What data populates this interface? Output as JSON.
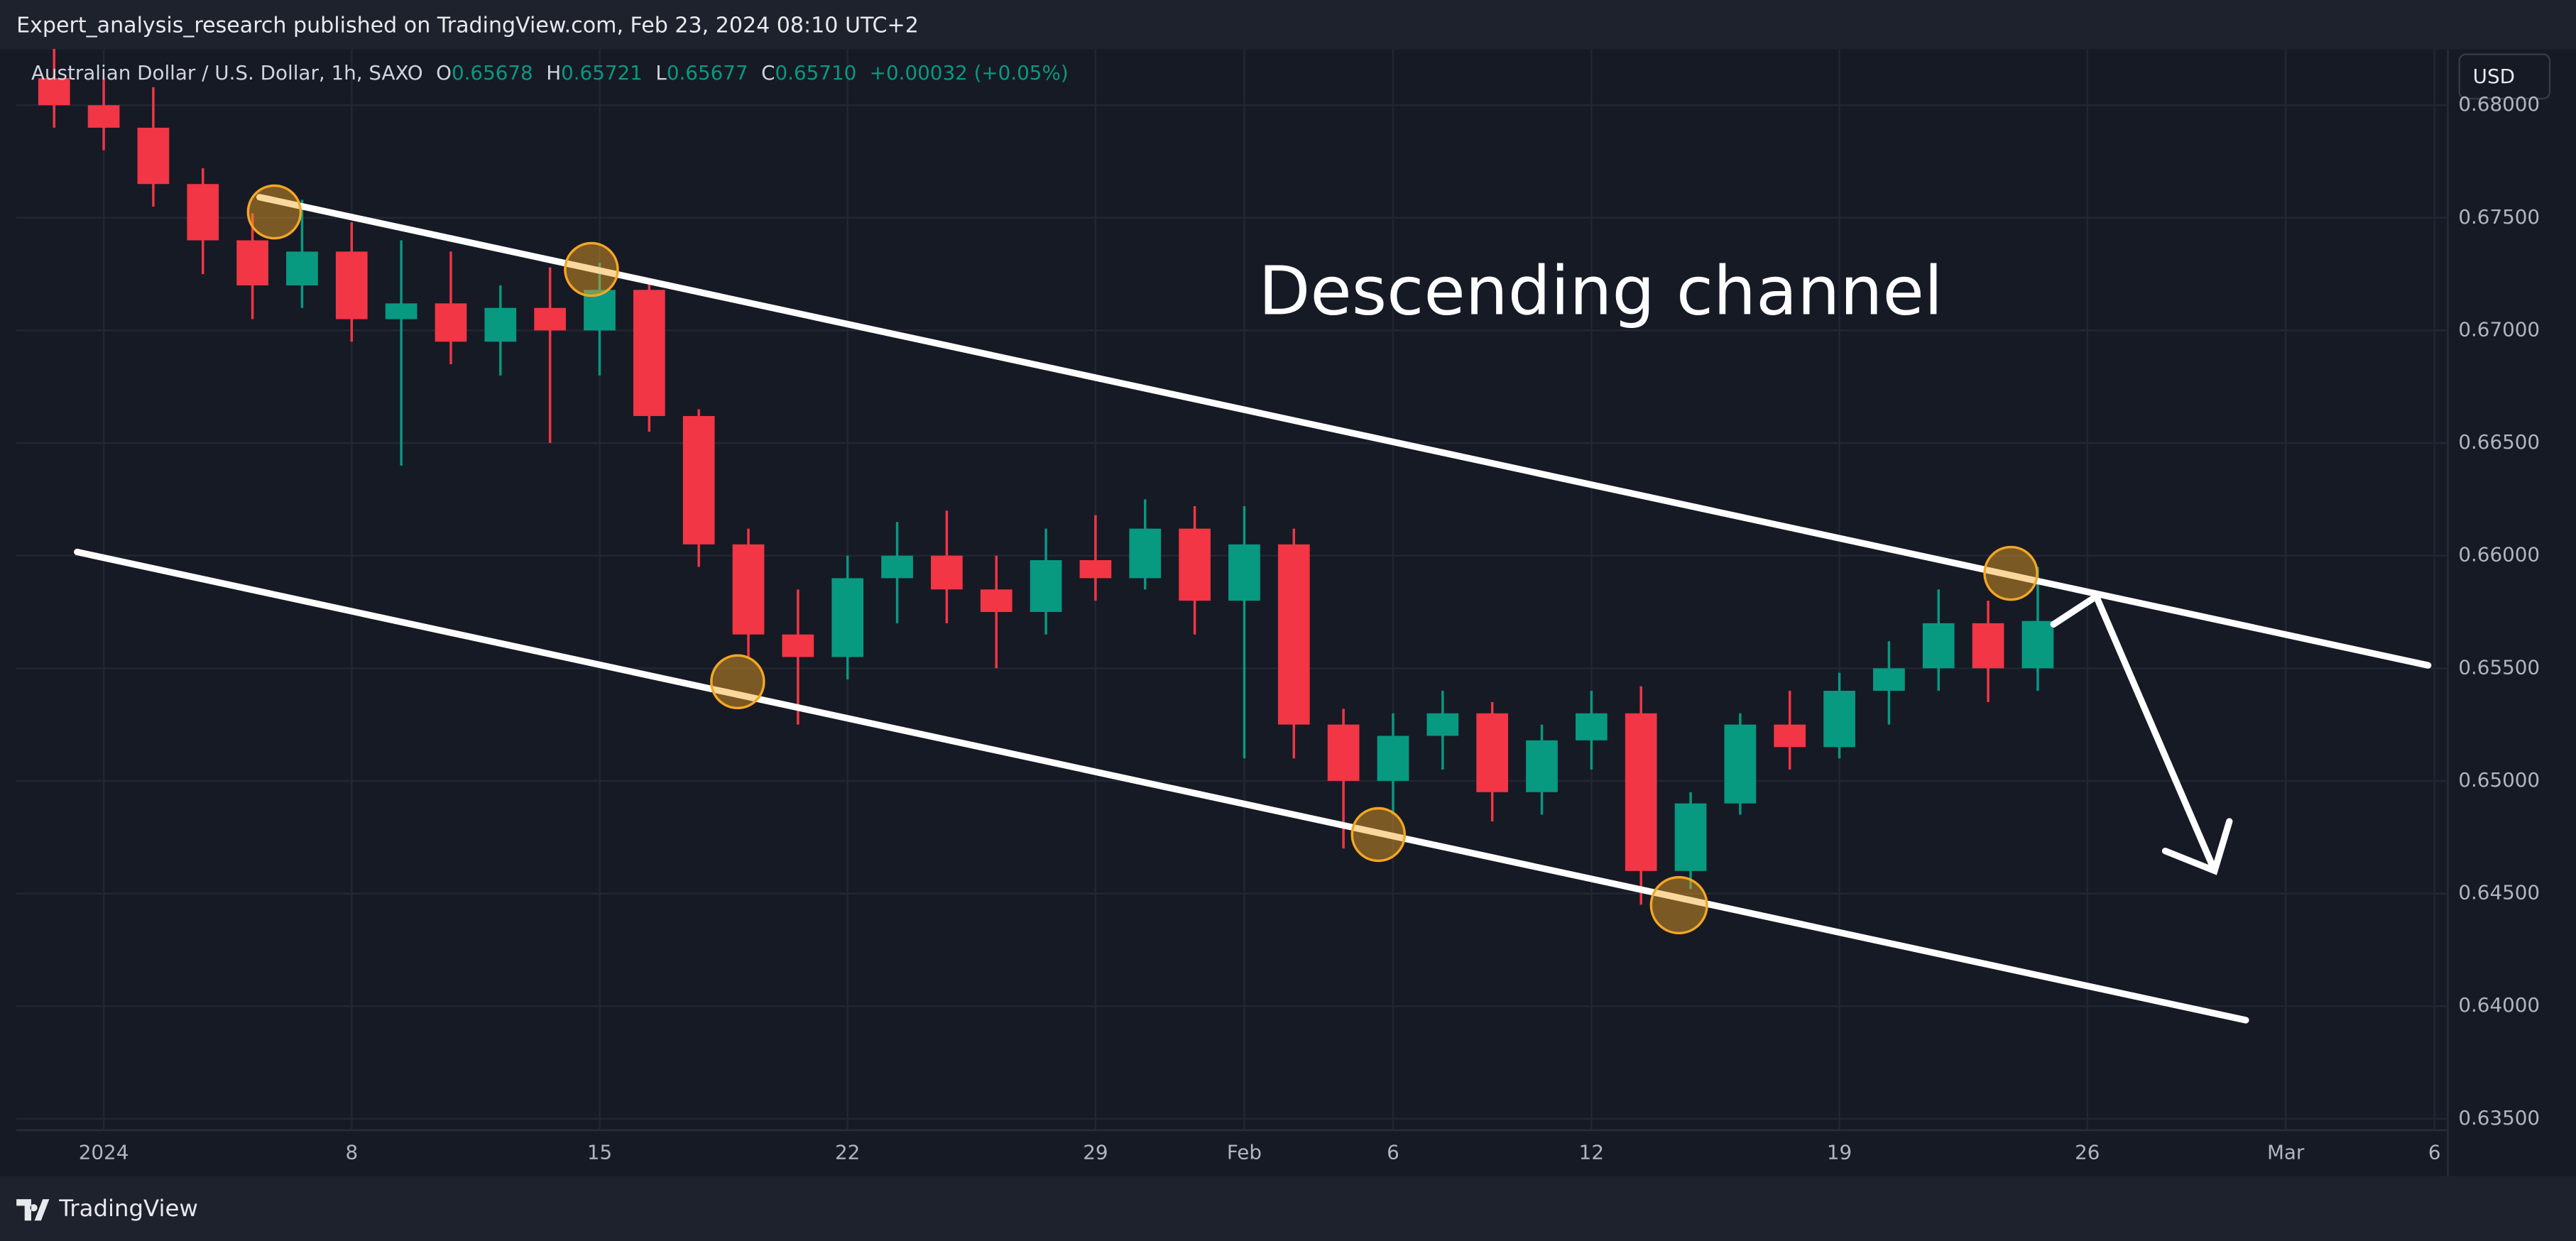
{
  "header": {
    "text": "Expert_analysis_research published on TradingView.com, Feb 23, 2024 08:10 UTC+2"
  },
  "footer": {
    "brand": "TradingView"
  },
  "currency_button": "USD",
  "chart_data": {
    "type": "candlestick",
    "title": "Australian Dollar / U.S. Dollar, 1h, SAXO",
    "ohlc_legend": {
      "o_label": "O",
      "o": "0.65678",
      "h_label": "H",
      "h": "0.65721",
      "l_label": "L",
      "l": "0.65677",
      "c_label": "C",
      "c": "0.65710",
      "change": "+0.00032 (+0.05%)"
    },
    "annotation": "Descending channel",
    "up_color": "#089981",
    "down_color": "#f23645",
    "x": [
      -1,
      0,
      1,
      2,
      3,
      4,
      5,
      6,
      7,
      8,
      9,
      10,
      11,
      12,
      13,
      14,
      15,
      16,
      17,
      18,
      19,
      20,
      21,
      22,
      23,
      24,
      25,
      26,
      27,
      28,
      29,
      30,
      31,
      32,
      33,
      34,
      35,
      36,
      37,
      38,
      39
    ],
    "open": [
      0.6812,
      0.68,
      0.679,
      0.6765,
      0.674,
      0.672,
      0.6735,
      0.6705,
      0.6712,
      0.6695,
      0.671,
      0.67,
      0.6718,
      0.6662,
      0.6605,
      0.6565,
      0.6555,
      0.659,
      0.66,
      0.6585,
      0.6575,
      0.6598,
      0.659,
      0.6612,
      0.658,
      0.6605,
      0.6525,
      0.65,
      0.652,
      0.653,
      0.6495,
      0.6518,
      0.653,
      0.646,
      0.649,
      0.6525,
      0.6515,
      0.654,
      0.655,
      0.657,
      0.655
    ],
    "high": [
      0.6825,
      0.6812,
      0.6808,
      0.6772,
      0.6752,
      0.6758,
      0.6748,
      0.674,
      0.6735,
      0.672,
      0.6728,
      0.673,
      0.6722,
      0.6665,
      0.6612,
      0.6585,
      0.66,
      0.6615,
      0.662,
      0.66,
      0.6612,
      0.6618,
      0.6625,
      0.6622,
      0.6622,
      0.6612,
      0.6532,
      0.653,
      0.654,
      0.6535,
      0.6525,
      0.654,
      0.6542,
      0.6495,
      0.653,
      0.654,
      0.6548,
      0.6562,
      0.6585,
      0.658,
      0.6595
    ],
    "low": [
      0.679,
      0.678,
      0.6755,
      0.6725,
      0.6705,
      0.671,
      0.6695,
      0.664,
      0.6685,
      0.668,
      0.665,
      0.668,
      0.6655,
      0.6595,
      0.6555,
      0.6525,
      0.6545,
      0.657,
      0.657,
      0.655,
      0.6565,
      0.658,
      0.6585,
      0.6565,
      0.651,
      0.651,
      0.647,
      0.6485,
      0.6505,
      0.6482,
      0.6485,
      0.6505,
      0.6445,
      0.6452,
      0.6485,
      0.6505,
      0.651,
      0.6525,
      0.654,
      0.6535,
      0.654
    ],
    "close": [
      0.68,
      0.679,
      0.6765,
      0.674,
      0.672,
      0.6735,
      0.6705,
      0.6712,
      0.6695,
      0.671,
      0.67,
      0.6718,
      0.6662,
      0.6605,
      0.6565,
      0.6555,
      0.659,
      0.66,
      0.6585,
      0.6575,
      0.6598,
      0.659,
      0.6612,
      0.658,
      0.6605,
      0.6525,
      0.65,
      0.652,
      0.653,
      0.6495,
      0.6518,
      0.653,
      0.646,
      0.649,
      0.6525,
      0.6515,
      0.654,
      0.655,
      0.657,
      0.655,
      0.6571
    ],
    "xlim": [
      -1.76,
      47.27
    ],
    "xticks": [
      {
        "value": 0,
        "label": "2024"
      },
      {
        "value": 5,
        "label": "8"
      },
      {
        "value": 10,
        "label": "15"
      },
      {
        "value": 15,
        "label": "22"
      },
      {
        "value": 20,
        "label": "29"
      },
      {
        "value": 23,
        "label": "Feb"
      },
      {
        "value": 26,
        "label": "6"
      },
      {
        "value": 30,
        "label": "12"
      },
      {
        "value": 35,
        "label": "19"
      },
      {
        "value": 40,
        "label": "26"
      },
      {
        "value": 44,
        "label": "Mar"
      },
      {
        "value": 47,
        "label": "6"
      }
    ],
    "ylim": [
      0.63449,
      0.68248
    ],
    "yticks": [
      {
        "value": 0.635,
        "label": "0.63500"
      },
      {
        "value": 0.64,
        "label": "0.64000"
      },
      {
        "value": 0.645,
        "label": "0.64500"
      },
      {
        "value": 0.65,
        "label": "0.65000"
      },
      {
        "value": 0.655,
        "label": "0.65500"
      },
      {
        "value": 0.66,
        "label": "0.66000"
      },
      {
        "value": 0.665,
        "label": "0.66500"
      },
      {
        "value": 0.67,
        "label": "0.67000"
      },
      {
        "value": 0.675,
        "label": "0.67500"
      },
      {
        "value": 0.68,
        "label": "0.68000"
      }
    ],
    "grid": true
  }
}
